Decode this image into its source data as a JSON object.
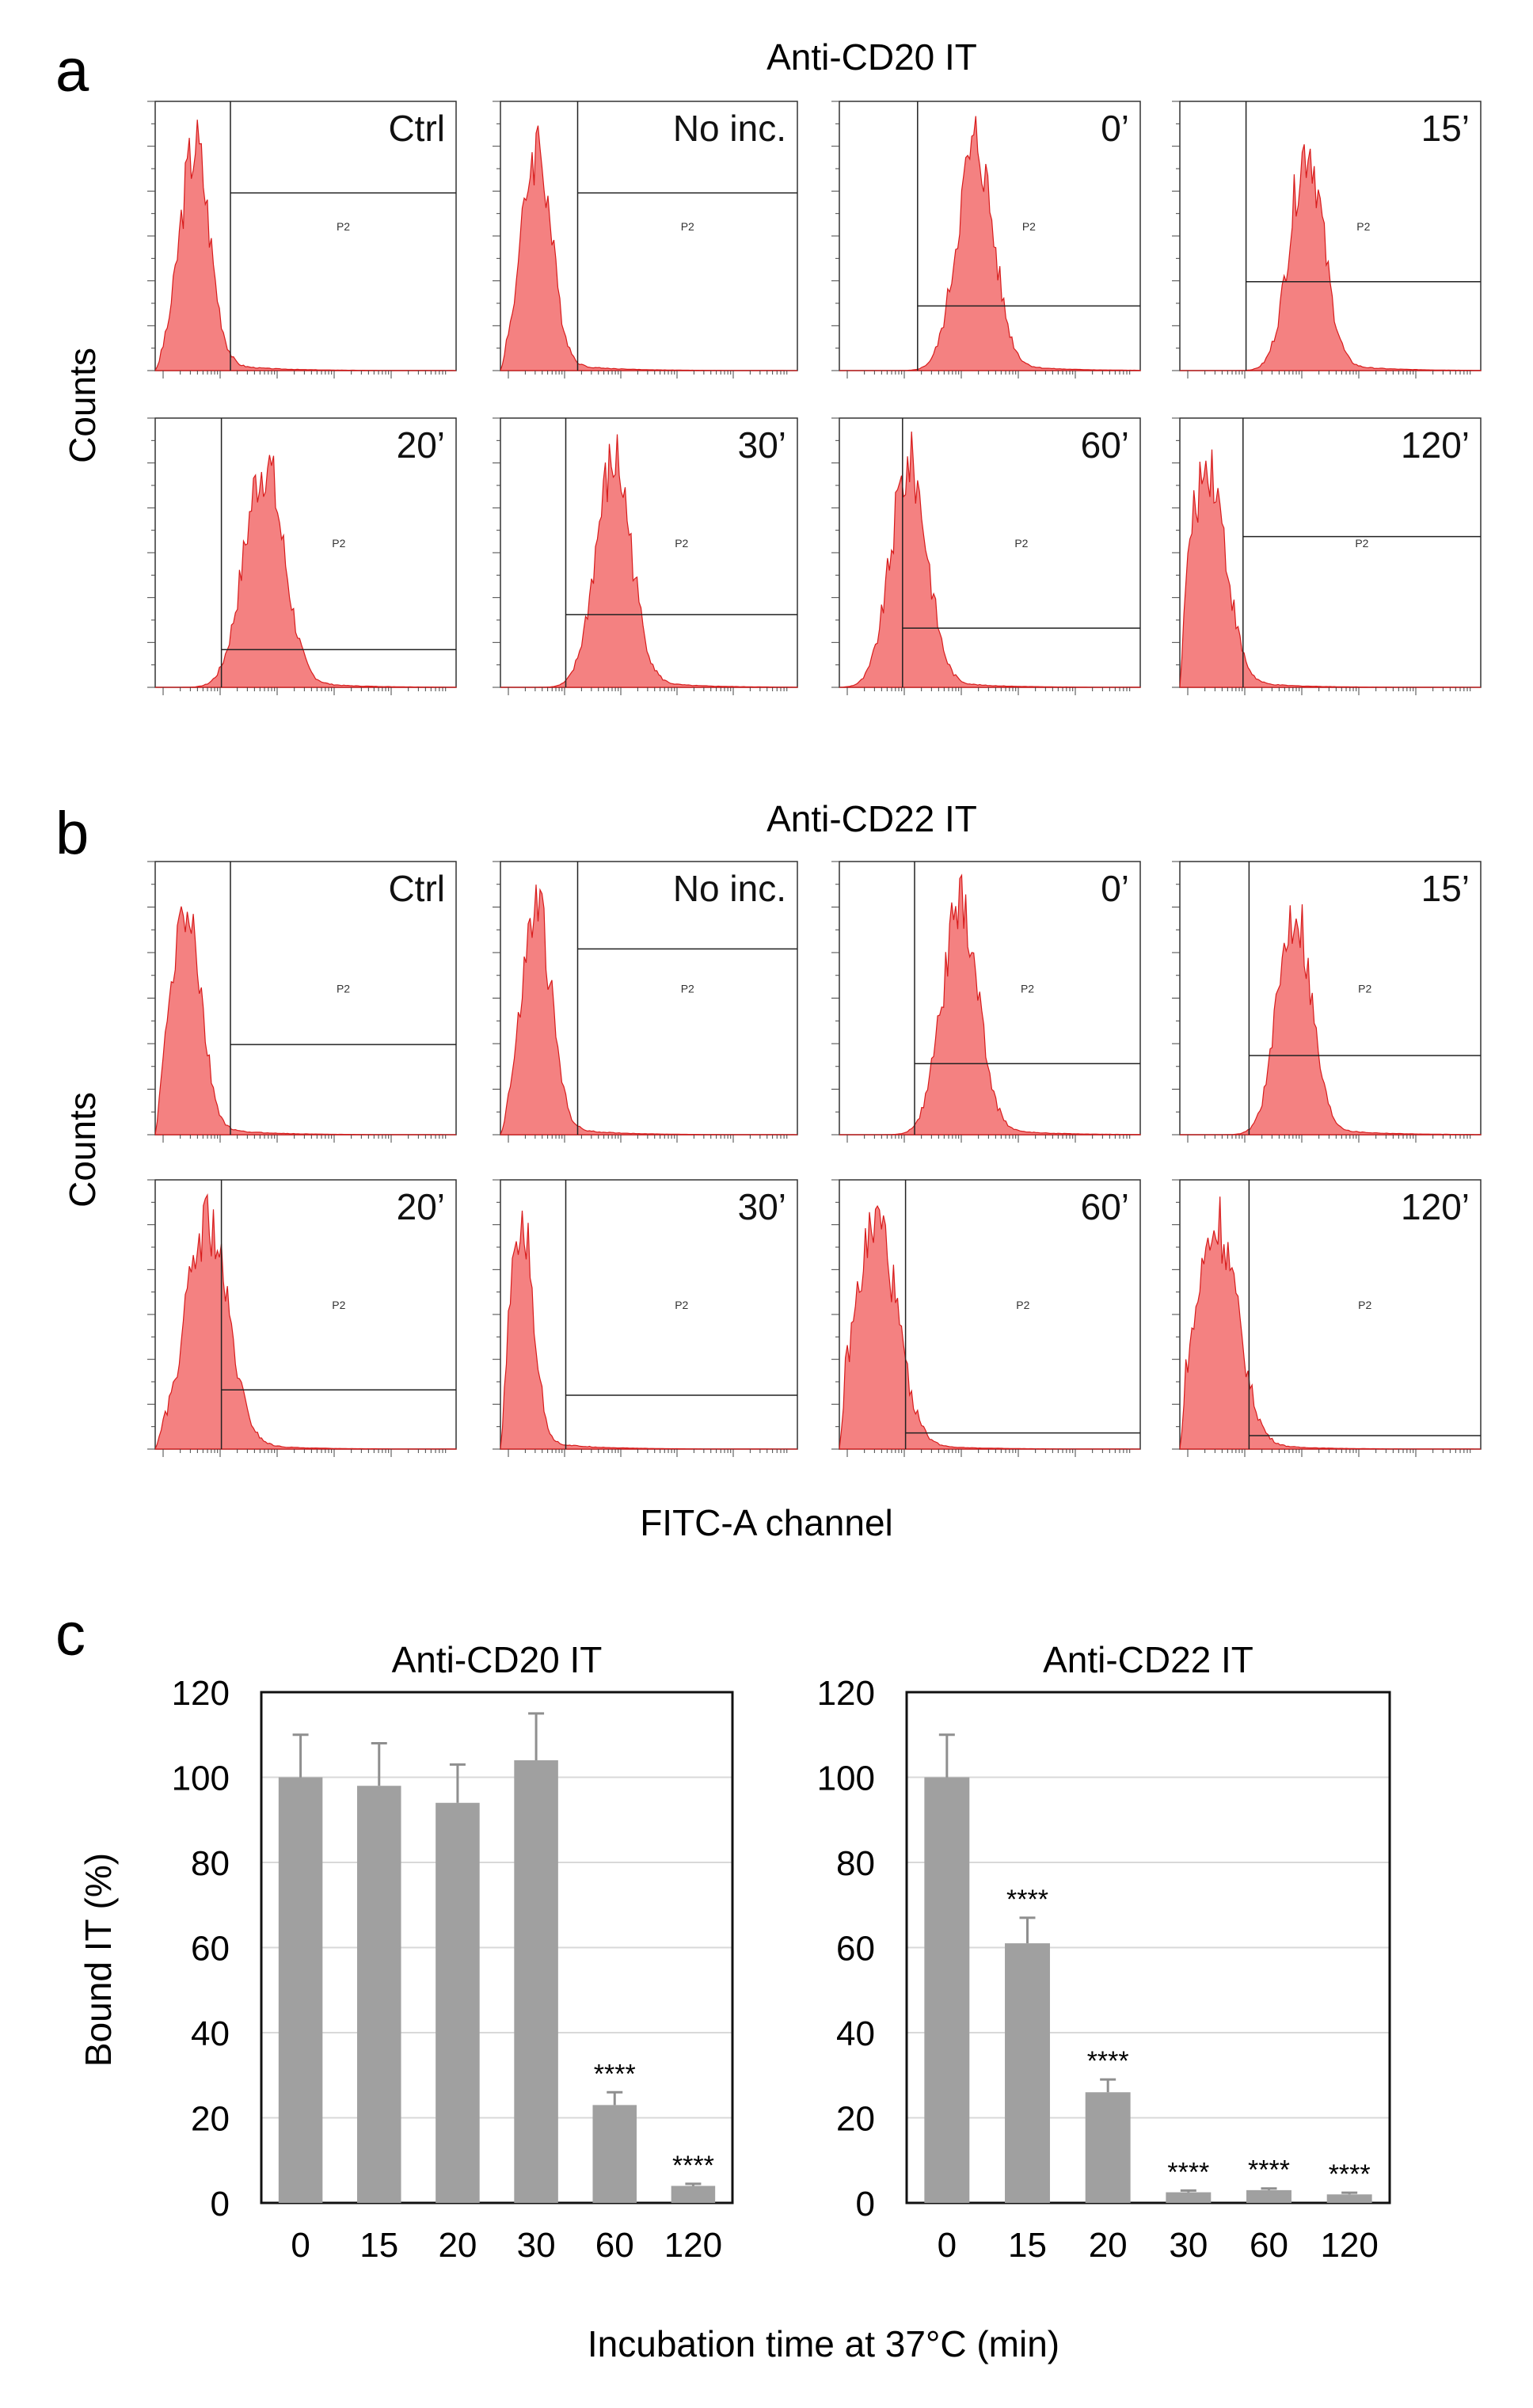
{
  "figure": {
    "panel_a_label": "a",
    "panel_b_label": "b",
    "panel_c_label": "c",
    "counts_label": "Counts",
    "gate_label": "P2",
    "flow_x_label": "FITC-A channel",
    "colors": {
      "histogram_fill": "#f26b6b",
      "histogram_stroke": "#d81c1c",
      "bar": "#a0a0a0",
      "errorbar": "#8f8f8f",
      "gridline": "#d9d9d9"
    }
  },
  "histograms": [
    {
      "title": "Anti-CD20 IT",
      "panels": [
        {
          "label": "Ctrl",
          "peak": 0.13,
          "width": 0.05,
          "gate_x": 0.25,
          "gate_y": 0.66,
          "tail": 0.6
        },
        {
          "label": "No inc.",
          "peak": 0.12,
          "width": 0.05,
          "gate_x": 0.26,
          "gate_y": 0.66,
          "tail": 0.6
        },
        {
          "label": "0’",
          "peak": 0.45,
          "width": 0.06,
          "gate_x": 0.26,
          "gate_y": 0.24,
          "tail": 0.4
        },
        {
          "label": "15’",
          "peak": 0.42,
          "width": 0.055,
          "gate_x": 0.22,
          "gate_y": 0.33,
          "tail": 0.35
        },
        {
          "label": "20’",
          "peak": 0.36,
          "width": 0.065,
          "gate_x": 0.22,
          "gate_y": 0.14,
          "tail": 0.4
        },
        {
          "label": "30’",
          "peak": 0.38,
          "width": 0.06,
          "gate_x": 0.22,
          "gate_y": 0.27,
          "tail": 0.4
        },
        {
          "label": "60’",
          "peak": 0.23,
          "width": 0.06,
          "gate_x": 0.21,
          "gate_y": 0.22,
          "tail": 0.5
        },
        {
          "label": "120’",
          "peak": 0.09,
          "width": 0.06,
          "gate_x": 0.21,
          "gate_y": 0.56,
          "tail": 0.6
        }
      ]
    },
    {
      "title": "Anti-CD22 IT",
      "panels": [
        {
          "label": "Ctrl",
          "peak": 0.1,
          "width": 0.05,
          "gate_x": 0.25,
          "gate_y": 0.33,
          "tail": 0.6
        },
        {
          "label": "No inc.",
          "peak": 0.12,
          "width": 0.05,
          "gate_x": 0.26,
          "gate_y": 0.68,
          "tail": 0.6
        },
        {
          "label": "0’",
          "peak": 0.4,
          "width": 0.06,
          "gate_x": 0.25,
          "gate_y": 0.26,
          "tail": 0.4
        },
        {
          "label": "15’",
          "peak": 0.38,
          "width": 0.055,
          "gate_x": 0.23,
          "gate_y": 0.29,
          "tail": 0.35
        },
        {
          "label": "20’",
          "peak": 0.17,
          "width": 0.07,
          "gate_x": 0.22,
          "gate_y": 0.22,
          "tail": 0.5
        },
        {
          "label": "30’",
          "peak": 0.07,
          "width": 0.04,
          "gate_x": 0.22,
          "gate_y": 0.2,
          "tail": 0.7
        },
        {
          "label": "60’",
          "peak": 0.12,
          "width": 0.07,
          "gate_x": 0.22,
          "gate_y": 0.06,
          "tail": 0.55
        },
        {
          "label": "120’",
          "peak": 0.12,
          "width": 0.07,
          "gate_x": 0.23,
          "gate_y": 0.05,
          "tail": 0.55
        }
      ]
    }
  ],
  "chart_data": [
    {
      "type": "bar",
      "title": "Anti-CD20 IT",
      "categories": [
        "0",
        "15",
        "20",
        "30",
        "60",
        "120"
      ],
      "values": [
        100,
        98,
        94,
        104,
        23,
        4
      ],
      "errors": [
        10,
        10,
        9,
        11,
        3,
        0.5
      ],
      "significance": [
        "",
        "",
        "",
        "",
        "****",
        "****"
      ],
      "ylabel": "Bound IT (%)",
      "xlabel": "Incubation time at 37°C (min)",
      "ylim": [
        0,
        120
      ],
      "yticks": [
        "0",
        "20",
        "40",
        "60",
        "80",
        "100",
        "120"
      ],
      "grid": true
    },
    {
      "type": "bar",
      "title": "Anti-CD22 IT",
      "categories": [
        "0",
        "15",
        "20",
        "30",
        "60",
        "120"
      ],
      "values": [
        100,
        61,
        26,
        2.5,
        3,
        2
      ],
      "errors": [
        10,
        6,
        3,
        0.4,
        0.4,
        0.4
      ],
      "significance": [
        "",
        "****",
        "****",
        "****",
        "****",
        "****"
      ],
      "ylabel": "",
      "xlabel": "Incubation time at 37°C (min)",
      "ylim": [
        0,
        120
      ],
      "yticks": [
        "0",
        "20",
        "40",
        "60",
        "80",
        "100",
        "120"
      ],
      "grid": true
    }
  ]
}
